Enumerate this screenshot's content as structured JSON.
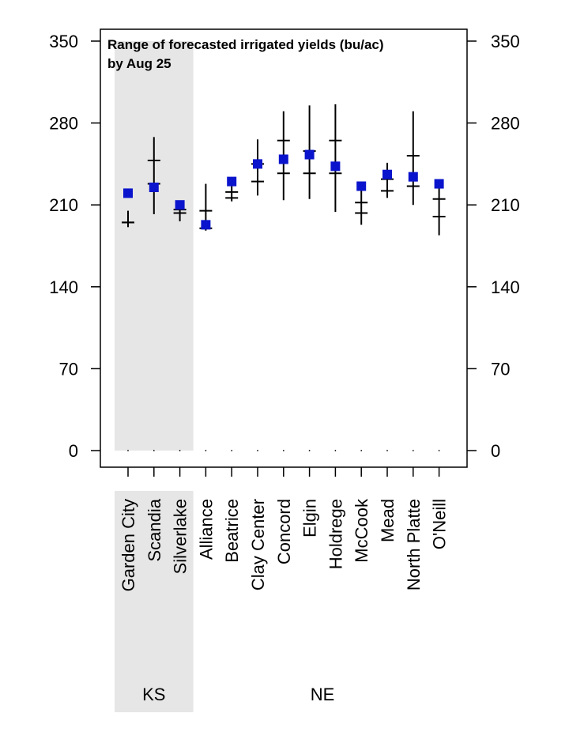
{
  "chart_data": {
    "type": "scatter",
    "title_line1": "Range of forecasted irrigated yields (bu/ac)",
    "title_line2": "by Aug 25",
    "xlabel": "",
    "ylabel": "",
    "ylim": [
      0,
      350
    ],
    "yticks": [
      0,
      70,
      140,
      210,
      280,
      350
    ],
    "ytick_labels": [
      "0",
      "70",
      "140",
      "210",
      "280",
      "350"
    ],
    "categories": [
      "Garden City",
      "Scandia",
      "Silverlake",
      "Alliance",
      "Beatrice",
      "Clay Center",
      "Concord",
      "Elgin",
      "Holdrege",
      "McCook",
      "Mead",
      "North Platte",
      "O'Neill"
    ],
    "groups": [
      {
        "label": "KS",
        "start": 0,
        "end": 2,
        "shaded": true
      },
      {
        "label": "NE",
        "start": 3,
        "end": 12,
        "shaded": false
      }
    ],
    "forecast_range": {
      "min": [
        191,
        202,
        196,
        188,
        213,
        218,
        214,
        215,
        204,
        193,
        216,
        210,
        184
      ],
      "max": [
        205,
        268,
        212,
        228,
        232,
        266,
        290,
        295,
        296,
        225,
        246,
        290,
        230
      ],
      "marker": [
        195,
        248,
        203,
        205,
        221,
        230,
        237,
        237,
        237,
        203,
        222,
        226,
        200
      ],
      "marker2": [
        195,
        228,
        206,
        190,
        216,
        245,
        265,
        256,
        265,
        212,
        232,
        252,
        215
      ]
    },
    "square_values": [
      220,
      225,
      210,
      193,
      230,
      245,
      249,
      253,
      243,
      226,
      236,
      234,
      228
    ],
    "colors": {
      "square": "#0a14cc",
      "range": "#000000",
      "shade": "#e6e6e6"
    }
  }
}
